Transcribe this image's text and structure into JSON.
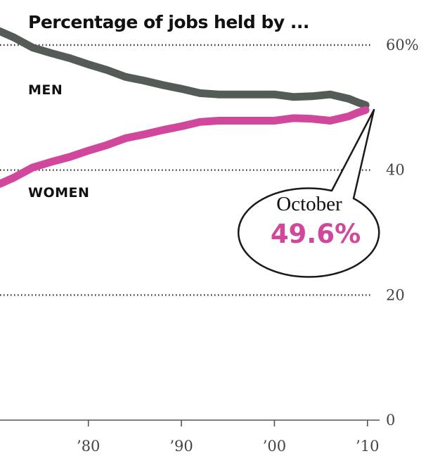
{
  "title": "Percentage of jobs held by ...",
  "colors": {
    "men": "#555b57",
    "women": "#d0479b",
    "grid": "#333333",
    "axis": "#555555"
  },
  "chart_data": {
    "type": "line",
    "title": "Percentage of jobs held by ...",
    "xlabel": "",
    "ylabel": "",
    "xlim": [
      1970.5,
      2011
    ],
    "ylim": [
      0,
      60
    ],
    "yticks": [
      {
        "value": 0,
        "label": "0"
      },
      {
        "value": 20,
        "label": "20"
      },
      {
        "value": 40,
        "label": "40"
      },
      {
        "value": 60,
        "label": "60%"
      }
    ],
    "xticks": [
      {
        "value": 1980,
        "label": "’80"
      },
      {
        "value": 1990,
        "label": "’90"
      },
      {
        "value": 2000,
        "label": "’00"
      },
      {
        "value": 2010,
        "label": "’10"
      }
    ],
    "grid": true,
    "series": [
      {
        "name": "MEN",
        "x": [
          1970.5,
          1972,
          1974,
          1976,
          1978,
          1980,
          1982,
          1984,
          1986,
          1988,
          1990,
          1992,
          1994,
          1996,
          1998,
          2000,
          2002,
          2004,
          2006,
          2008,
          2009,
          2009.8
        ],
        "y": [
          62.2,
          61.2,
          59.6,
          58.7,
          57.9,
          56.9,
          56.0,
          54.9,
          54.3,
          53.6,
          53.0,
          52.3,
          52.1,
          52.1,
          52.1,
          52.1,
          51.7,
          51.8,
          52.1,
          51.4,
          50.8,
          50.4
        ]
      },
      {
        "name": "WOMEN",
        "x": [
          1970.5,
          1972,
          1974,
          1976,
          1978,
          1980,
          1982,
          1984,
          1986,
          1988,
          1990,
          1992,
          1994,
          1996,
          1998,
          2000,
          2002,
          2004,
          2006,
          2008,
          2009,
          2009.8
        ],
        "y": [
          37.8,
          38.8,
          40.4,
          41.3,
          42.1,
          43.1,
          44.0,
          45.1,
          45.7,
          46.4,
          47.0,
          47.7,
          47.9,
          47.9,
          47.9,
          47.9,
          48.3,
          48.2,
          47.9,
          48.6,
          49.2,
          49.6
        ]
      }
    ],
    "annotations": {
      "men_label": "MEN",
      "women_label": "WOMEN",
      "callout_month": "October",
      "callout_value": "49.6%"
    }
  }
}
